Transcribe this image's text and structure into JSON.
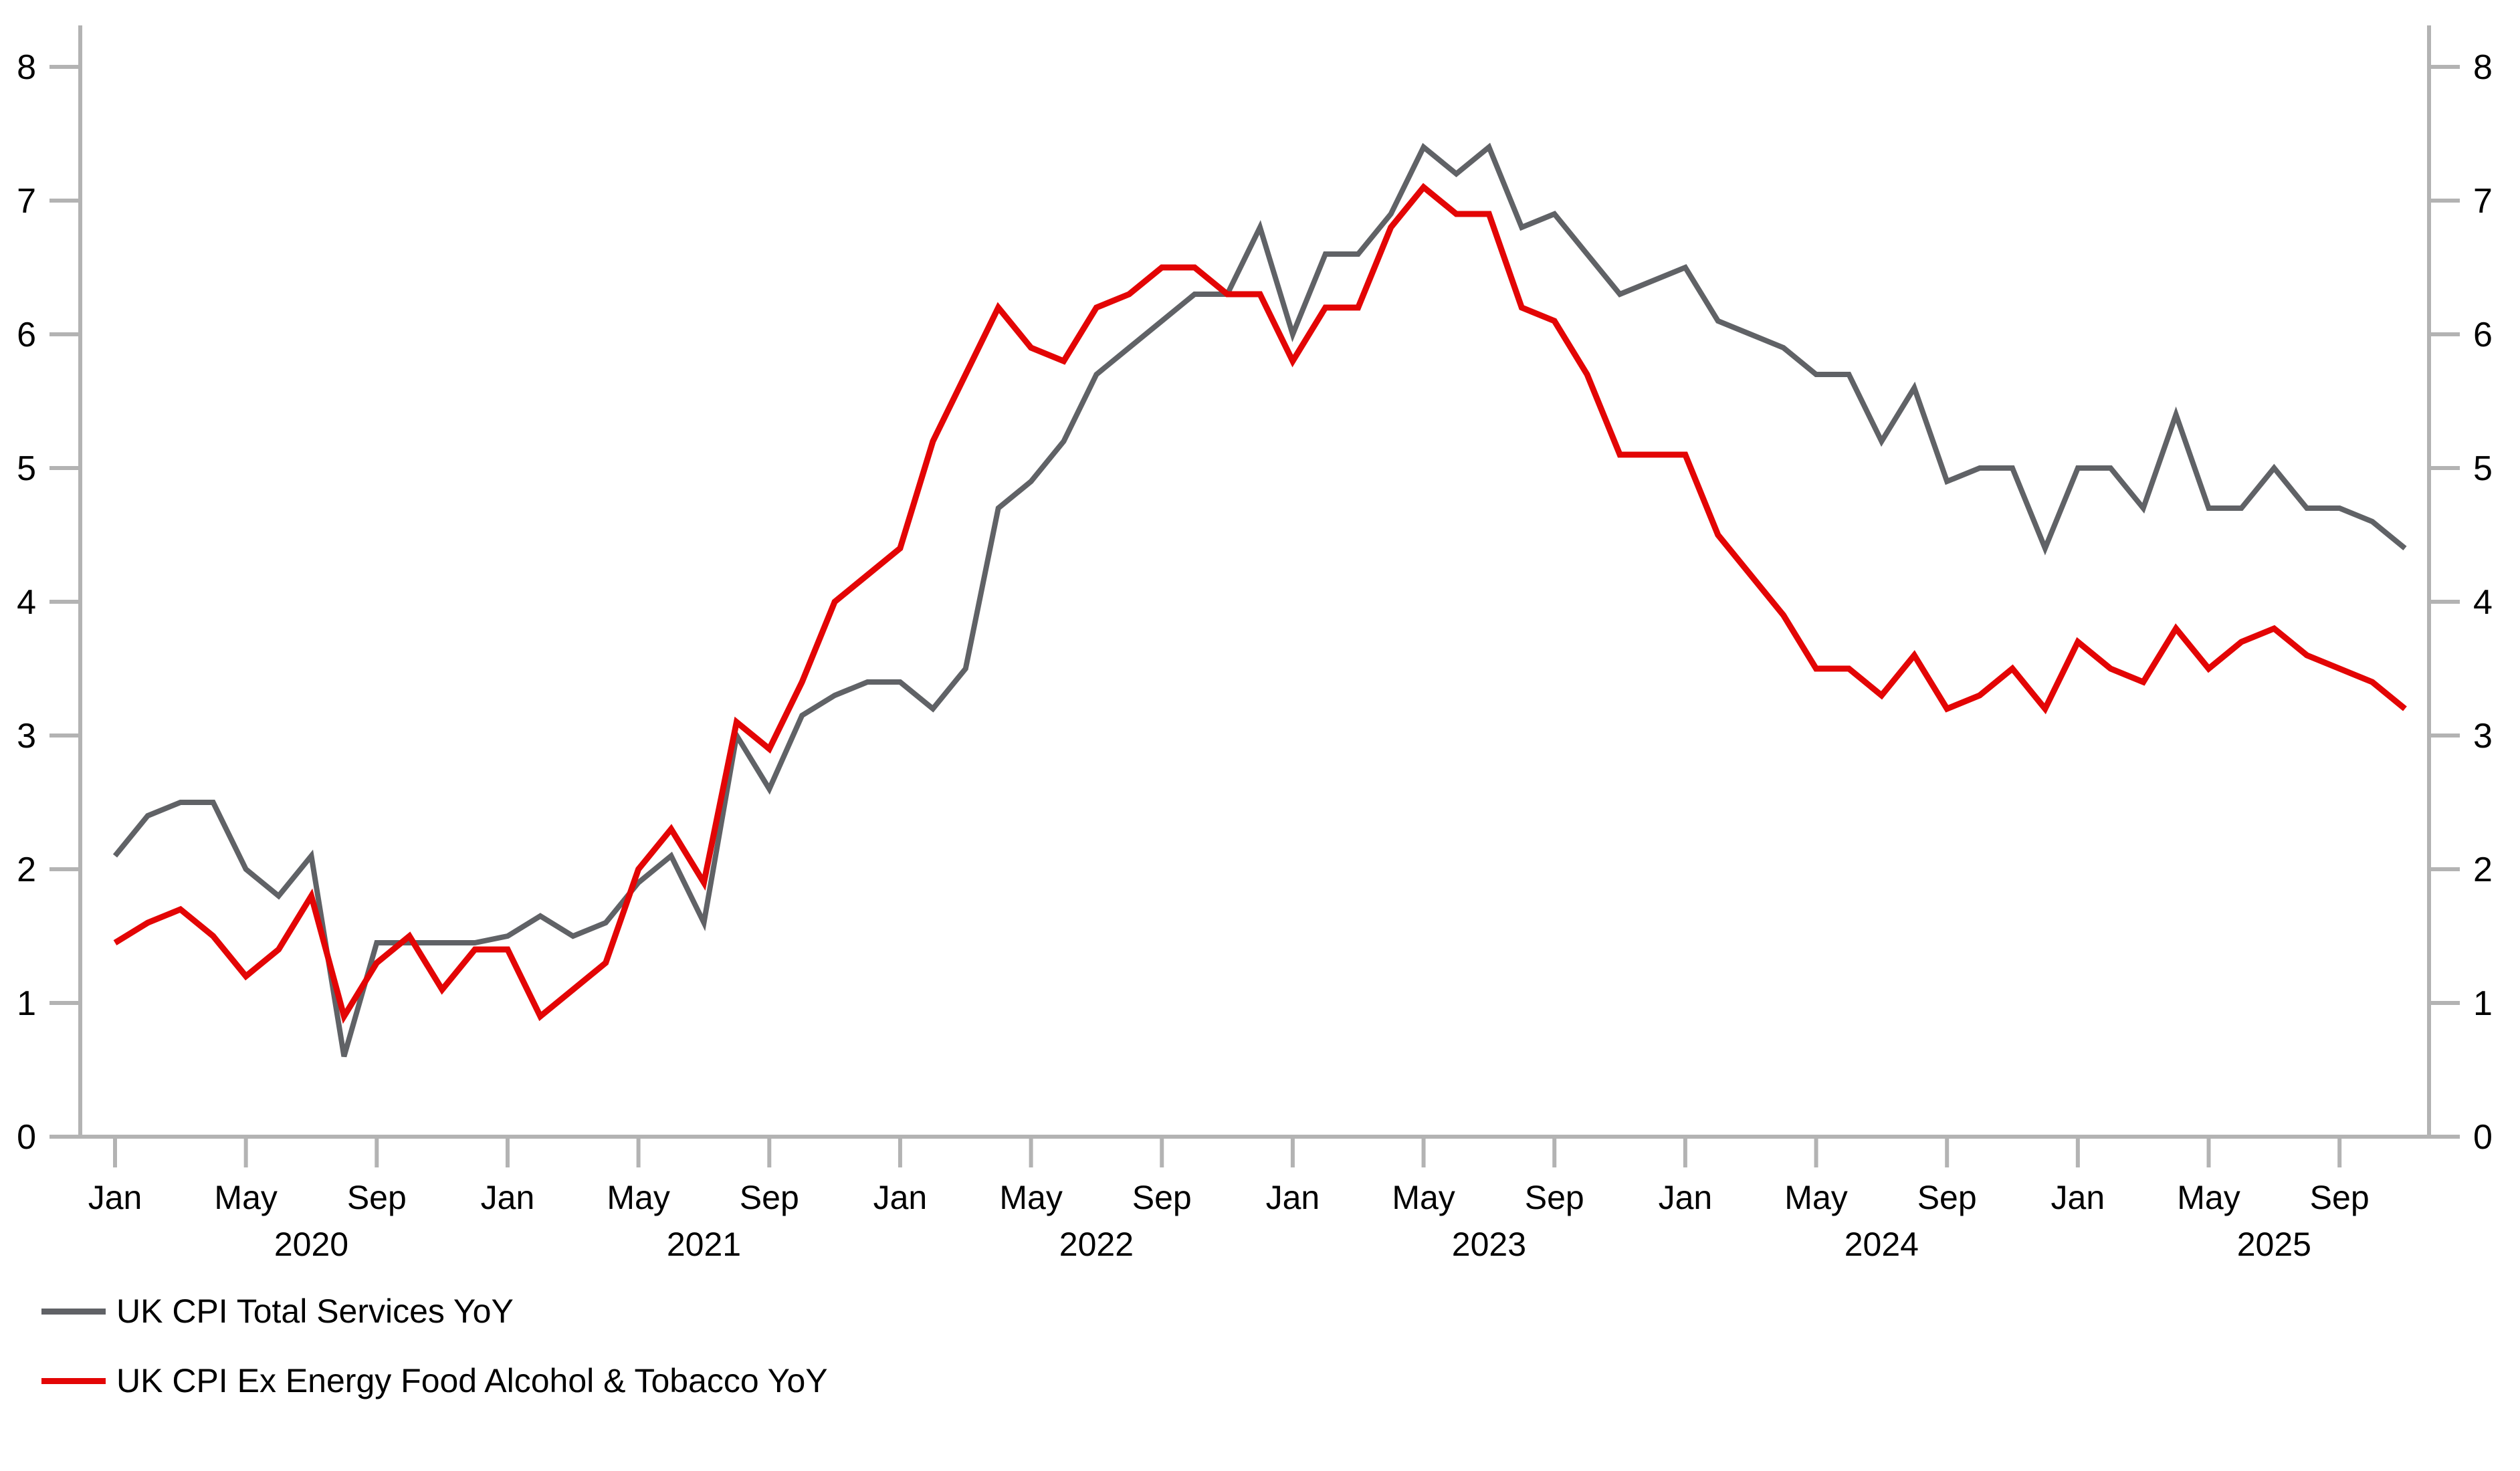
{
  "chart_data": {
    "type": "line",
    "title": "",
    "x_frequency": "monthly",
    "x_start": "2020-01",
    "x_end": "2025-11",
    "x_tick_month_labels": [
      "Jan",
      "May",
      "Sep"
    ],
    "x_tick_month_indices": [
      0,
      4,
      8
    ],
    "year_labels": [
      "2020",
      "2021",
      "2022",
      "2023",
      "2024",
      "2025"
    ],
    "ylim": [
      0,
      8
    ],
    "yticks": [
      "0",
      "1",
      "2",
      "3",
      "4",
      "5",
      "6",
      "7",
      "8"
    ],
    "y_axis_sides": [
      "left",
      "right"
    ],
    "grid": false,
    "axis_color": "#b3b3b3",
    "text_color": "#000000",
    "legend_position": "bottom-left",
    "series": [
      {
        "name": "UK CPI Total Services YoY",
        "color": "#606266",
        "stroke_width": 8,
        "values": [
          2.1,
          2.4,
          2.5,
          2.5,
          2.0,
          1.8,
          2.1,
          0.6,
          1.45,
          1.45,
          1.45,
          1.45,
          1.5,
          1.65,
          1.5,
          1.6,
          1.9,
          2.1,
          1.6,
          3.0,
          2.6,
          3.15,
          3.3,
          3.4,
          3.4,
          3.2,
          3.5,
          4.7,
          4.9,
          5.2,
          5.7,
          5.9,
          6.1,
          6.3,
          6.3,
          6.8,
          6.0,
          6.6,
          6.6,
          6.9,
          7.4,
          7.2,
          7.4,
          6.8,
          6.9,
          6.6,
          6.3,
          6.4,
          6.5,
          6.1,
          6.0,
          5.9,
          5.7,
          5.7,
          5.2,
          5.6,
          4.9,
          5.0,
          5.0,
          4.4,
          5.0,
          5.0,
          4.7,
          5.4,
          4.7,
          4.7,
          5.0,
          4.7,
          4.7,
          4.6,
          4.4
        ]
      },
      {
        "name": "UK CPI Ex Energy Food Alcohol & Tobacco YoY",
        "color": "#e30505",
        "stroke_width": 9,
        "values": [
          1.45,
          1.6,
          1.7,
          1.5,
          1.2,
          1.4,
          1.8,
          0.9,
          1.3,
          1.5,
          1.1,
          1.4,
          1.4,
          0.9,
          1.1,
          1.3,
          2.0,
          2.3,
          1.9,
          3.1,
          2.9,
          3.4,
          4.0,
          4.2,
          4.4,
          5.2,
          5.7,
          6.2,
          5.9,
          5.8,
          6.2,
          6.3,
          6.5,
          6.5,
          6.3,
          6.3,
          5.8,
          6.2,
          6.2,
          6.8,
          7.1,
          6.9,
          6.9,
          6.2,
          6.1,
          5.7,
          5.1,
          5.1,
          5.1,
          4.5,
          4.2,
          3.9,
          3.5,
          3.5,
          3.3,
          3.6,
          3.2,
          3.3,
          3.5,
          3.2,
          3.7,
          3.5,
          3.4,
          3.8,
          3.5,
          3.7,
          3.8,
          3.6,
          3.5,
          3.4,
          3.2
        ]
      }
    ]
  },
  "legend": {
    "items": [
      {
        "label": "UK CPI Total Services YoY",
        "color": "#606266"
      },
      {
        "label": "UK CPI Ex Energy Food Alcohol & Tobacco YoY",
        "color": "#e30505"
      }
    ]
  }
}
